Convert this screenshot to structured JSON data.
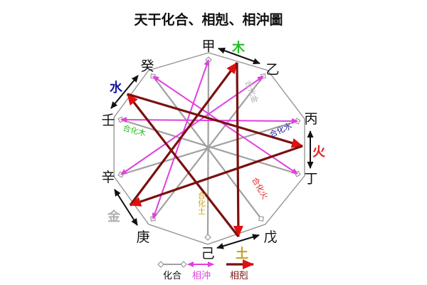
{
  "title": "天干化合、相剋、相沖圖",
  "stems": [
    "甲",
    "乙",
    "丙",
    "丁",
    "戊",
    "己",
    "庚",
    "辛",
    "壬",
    "癸"
  ],
  "elements": [
    {
      "name": "木",
      "color": "#22c022"
    },
    {
      "name": "火",
      "color": "#e02020"
    },
    {
      "name": "土",
      "color": "#c8a020"
    },
    {
      "name": "金",
      "color": "#b0b0b0"
    },
    {
      "name": "水",
      "color": "#1a1aa0"
    }
  ],
  "combinations": [
    {
      "pair": [
        "甲",
        "己"
      ],
      "label": "合化土",
      "color": "#c8a020"
    },
    {
      "pair": [
        "乙",
        "庚"
      ],
      "label": "合化金",
      "color": "#b0b0b0"
    },
    {
      "pair": [
        "丙",
        "辛"
      ],
      "label": "合化水",
      "color": "#1a1aa0"
    },
    {
      "pair": [
        "丁",
        "壬"
      ],
      "label": "合化木",
      "color": "#22c022"
    },
    {
      "pair": [
        "戊",
        "癸"
      ],
      "label": "合化火",
      "color": "#e02020"
    }
  ],
  "clashes": [
    [
      "甲",
      "庚"
    ],
    [
      "乙",
      "辛"
    ],
    [
      "丙",
      "壬"
    ],
    [
      "丁",
      "癸"
    ]
  ],
  "controls": [
    [
      "金",
      "木"
    ],
    [
      "木",
      "土"
    ],
    [
      "土",
      "水"
    ],
    [
      "水",
      "火"
    ],
    [
      "火",
      "金"
    ]
  ],
  "colors": {
    "combine": "#a0a0a0",
    "clash": "#e040e0",
    "control": "#7a1010",
    "arrowhead": "#e01010",
    "outline": "#909090"
  },
  "legend": {
    "combine": "化合",
    "clash": "相沖",
    "control": "相剋"
  }
}
